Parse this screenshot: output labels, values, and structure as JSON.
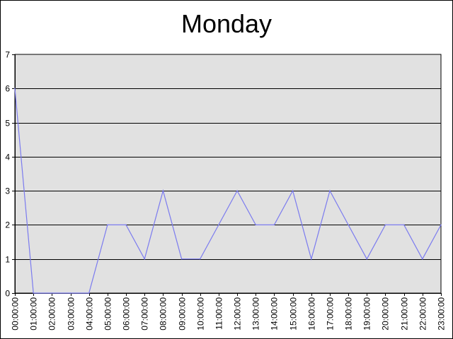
{
  "chart_data": {
    "type": "line",
    "title": "Monday",
    "xlabel": "",
    "ylabel": "",
    "ylim": [
      0,
      7
    ],
    "y_ticks": [
      "0",
      "1",
      "2",
      "3",
      "4",
      "5",
      "6",
      "7"
    ],
    "grid": "horizontal",
    "plot_background": "#E1E1E1",
    "line_color": "#7B7BEF",
    "categories": [
      "00:00:00",
      "01:00:00",
      "02:00:00",
      "03:00:00",
      "04:00:00",
      "05:00:00",
      "06:00:00",
      "07:00:00",
      "08:00:00",
      "09:00:00",
      "10:00:00",
      "11:00:00",
      "12:00:00",
      "13:00:00",
      "14:00:00",
      "15:00:00",
      "16:00:00",
      "17:00:00",
      "18:00:00",
      "19:00:00",
      "20:00:00",
      "21:00:00",
      "22:00:00",
      "23:00:00"
    ],
    "series": [
      {
        "values": [
          6,
          0,
          0,
          0,
          0,
          2,
          2,
          1,
          3,
          1,
          1,
          2,
          3,
          2,
          2,
          3,
          1,
          3,
          2,
          1,
          2,
          2,
          1,
          2
        ]
      }
    ]
  }
}
